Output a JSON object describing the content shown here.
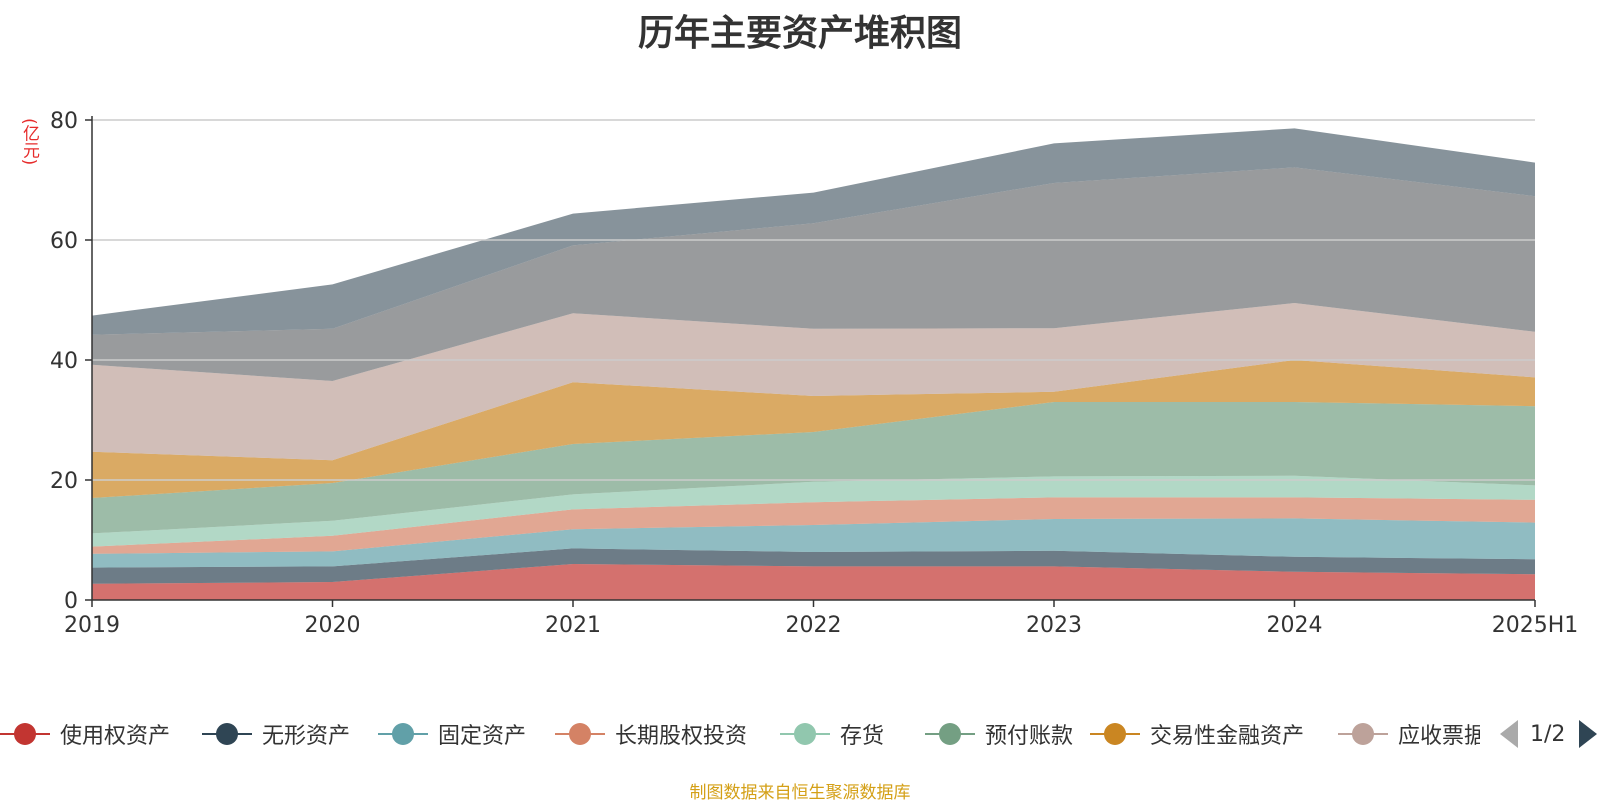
{
  "chart_data": {
    "type": "area",
    "title": "历年主要资产堆积图",
    "unit": "(亿元)",
    "categories": [
      "2019",
      "2020",
      "2021",
      "2022",
      "2023",
      "2024",
      "2025H1"
    ],
    "ylim": [
      0,
      80
    ],
    "y_ticks": [
      "0",
      "20",
      "40",
      "60",
      "80"
    ],
    "grid": true,
    "stacked": true,
    "legend_position": "bottom",
    "series": [
      {
        "name": "使用权资产",
        "color": "#c23531",
        "values": [
          2.7,
          3.0,
          6.0,
          5.6,
          5.6,
          4.7,
          4.3
        ]
      },
      {
        "name": "无形资产",
        "color": "#2f4554",
        "values": [
          2.7,
          2.6,
          2.6,
          2.4,
          2.6,
          2.5,
          2.5
        ]
      },
      {
        "name": "固定资产",
        "color": "#61a0a8",
        "values": [
          2.3,
          2.5,
          3.2,
          4.5,
          5.3,
          6.4,
          6.1
        ]
      },
      {
        "name": "长期股权投资",
        "color": "#d48265",
        "values": [
          1.2,
          2.6,
          3.3,
          3.8,
          3.6,
          3.5,
          3.8
        ]
      },
      {
        "name": "存货",
        "color": "#91c7ae",
        "values": [
          2.2,
          2.5,
          2.5,
          3.4,
          3.5,
          3.6,
          2.4
        ]
      },
      {
        "name": "预付账款",
        "color": "#749f83",
        "values": [
          5.9,
          6.3,
          8.4,
          8.3,
          12.4,
          12.3,
          13.2
        ]
      },
      {
        "name": "交易性金融资产",
        "color": "#ca8622",
        "values": [
          7.7,
          3.8,
          10.3,
          6.0,
          1.7,
          7.0,
          4.8
        ]
      },
      {
        "name": "应收票据",
        "color": "#bda29a",
        "values": [
          14.5,
          13.2,
          11.5,
          11.2,
          10.6,
          9.5,
          7.6
        ]
      },
      {
        "name": "",
        "color": "#6e7074",
        "values": [
          5.0,
          8.7,
          11.3,
          17.6,
          24.2,
          22.6,
          22.6
        ]
      },
      {
        "name": "",
        "color": "#546570",
        "values": [
          3.2,
          7.4,
          5.3,
          5.1,
          6.6,
          6.5,
          5.6
        ]
      }
    ]
  },
  "legend_pager": {
    "text": "1/2"
  },
  "source": "制图数据来自恒生聚源数据库",
  "colors": {
    "axis": "#333333",
    "grid": "#cccccc",
    "unit": "#e62b2b",
    "source": "#d4a017"
  }
}
